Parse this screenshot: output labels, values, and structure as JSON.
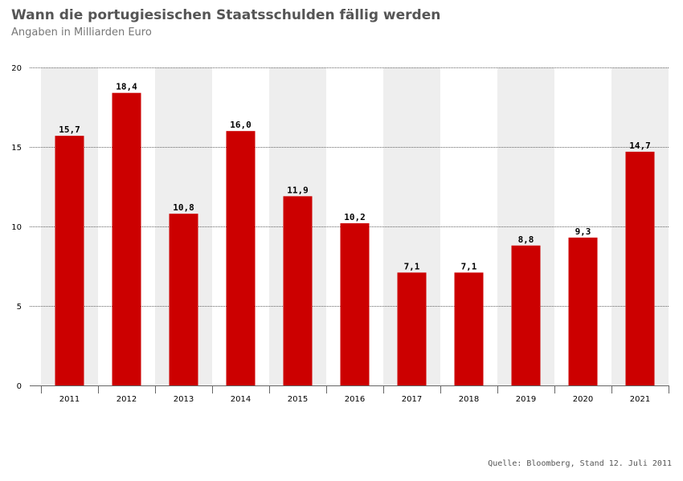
{
  "chart_data": {
    "type": "bar",
    "title": "Wann die portugiesischen Staatsschulden fällig werden",
    "subtitle": "Angaben in Milliarden Euro",
    "categories": [
      "2011",
      "2012",
      "2013",
      "2014",
      "2015",
      "2016",
      "2017",
      "2018",
      "2019",
      "2020",
      "2021"
    ],
    "values": [
      15.7,
      18.4,
      10.8,
      16.0,
      11.9,
      10.2,
      7.1,
      7.1,
      8.8,
      9.3,
      14.7
    ],
    "value_labels": [
      "15,7",
      "18,4",
      "10,8",
      "16,0",
      "11,9",
      "10,2",
      "7,1",
      "7,1",
      "8,8",
      "9,3",
      "14,7"
    ],
    "y_ticks": [
      "0",
      "5",
      "10",
      "15",
      "20"
    ],
    "ylim": [
      0,
      20
    ],
    "xlabel": "",
    "ylabel": "",
    "grid": true,
    "bar_color": "#cc0000",
    "band_color": "#eeeeee",
    "source": "Quelle: Bloomberg, Stand 12. Juli 2011"
  }
}
